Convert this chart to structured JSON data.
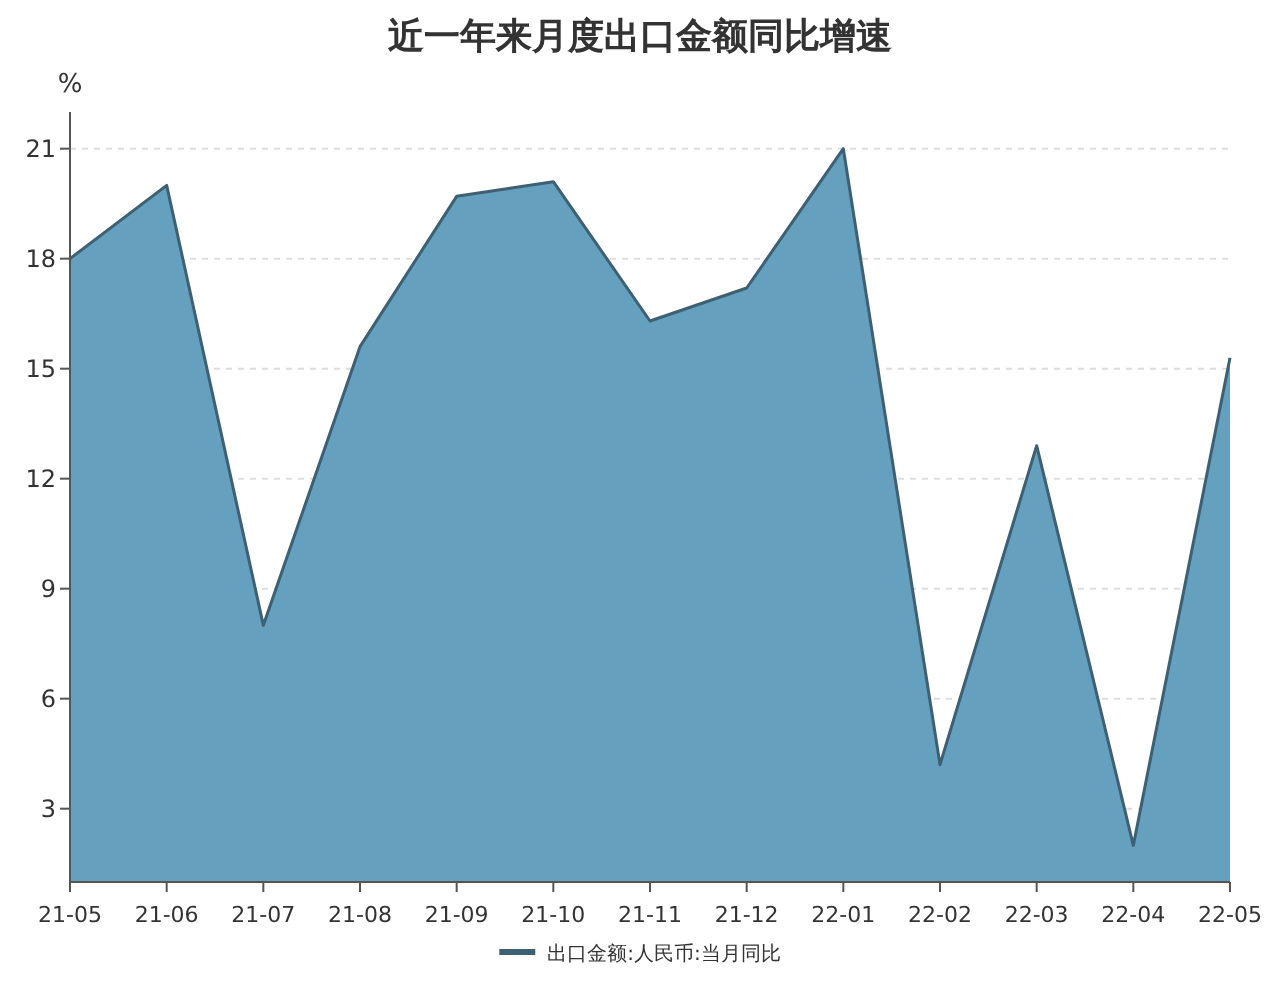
{
  "chart_data": {
    "type": "area",
    "title": "近一年来月度出口金额同比增速",
    "ylabel": "%",
    "categories": [
      "21-05",
      "21-06",
      "21-07",
      "21-08",
      "21-09",
      "21-10",
      "21-11",
      "21-12",
      "22-01",
      "22-02",
      "22-03",
      "22-04",
      "22-05"
    ],
    "series": [
      {
        "name": "出口金额:人民币:当月同比",
        "color": "#65a0bf",
        "values": [
          18.0,
          20.0,
          8.0,
          15.6,
          19.7,
          20.1,
          16.3,
          17.2,
          21.0,
          4.2,
          12.9,
          2.0,
          15.3
        ]
      }
    ],
    "ylim": [
      1,
      22
    ],
    "yticks": [
      3,
      6,
      9,
      12,
      15,
      18,
      21
    ],
    "grid": "y",
    "legend": "bottom"
  }
}
